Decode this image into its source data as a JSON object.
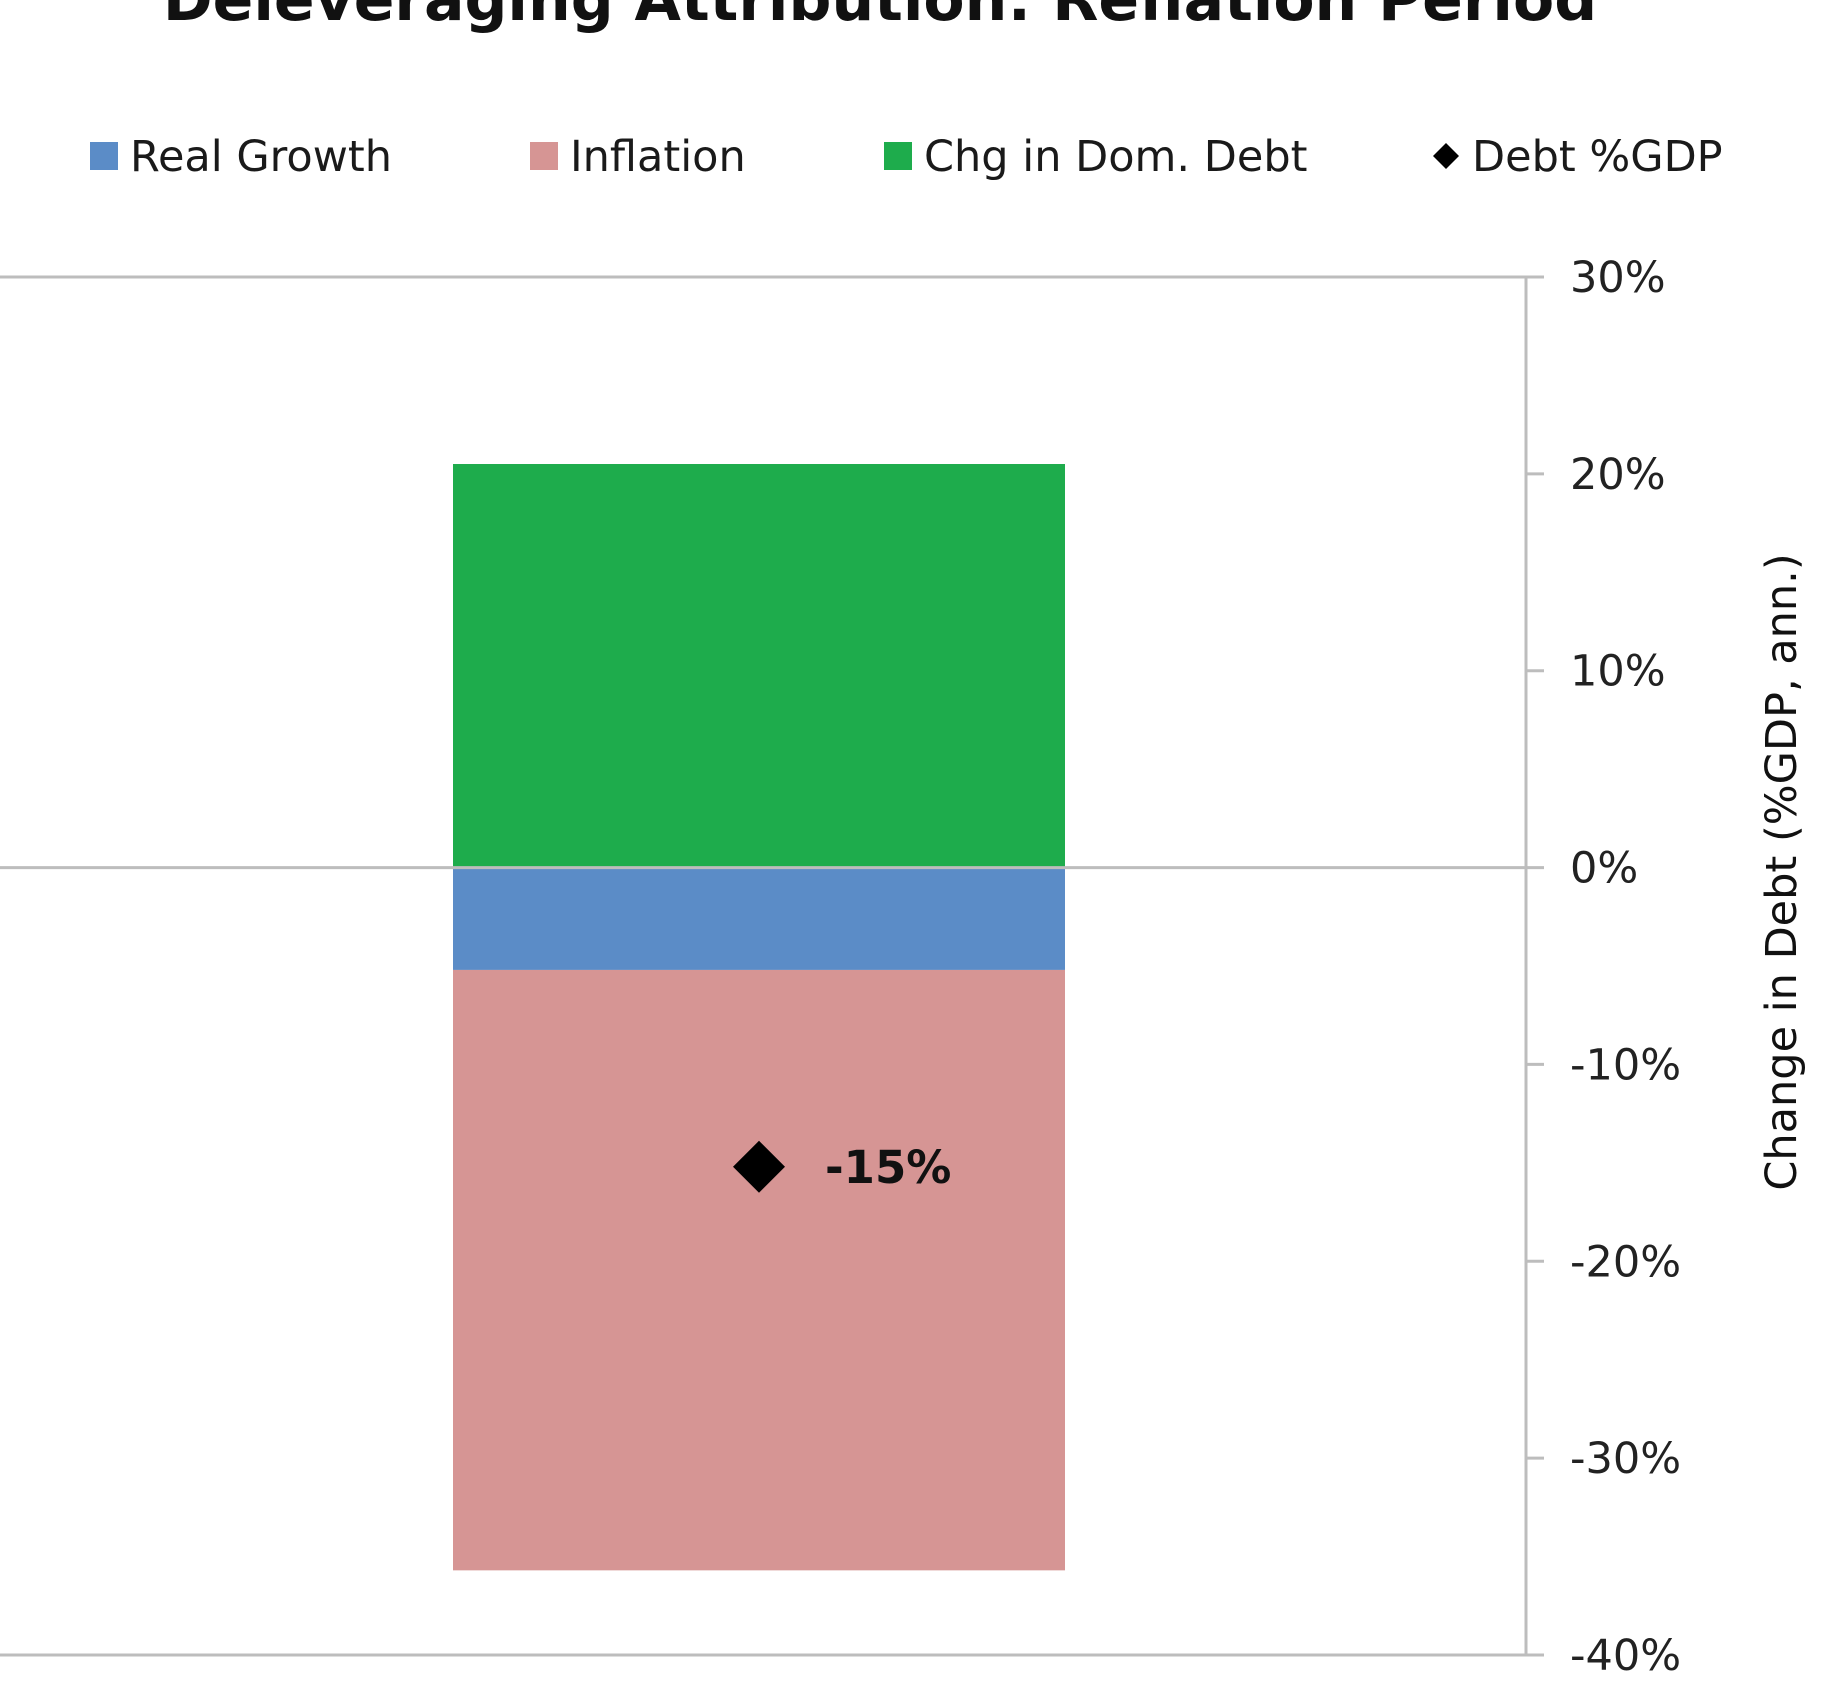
{
  "chart_data": {
    "type": "bar",
    "stacked": true,
    "title": "Deleveraging Attribution: Reflation Period",
    "ylabel": "Change in Debt (%GDP, ann.)",
    "xlabel": "",
    "ylim": [
      -40,
      30
    ],
    "yticks": [
      30,
      20,
      10,
      0,
      -10,
      -20,
      -30,
      -40
    ],
    "ytick_labels": [
      "30%",
      "20%",
      "10%",
      "0%",
      "-10%",
      "-20%",
      "-30%",
      "-40%"
    ],
    "y_axis_side": "right",
    "grid": false,
    "legend_position": "top",
    "categories": [
      ""
    ],
    "series": [
      {
        "name": "Real Growth",
        "values": [
          -5.2
        ],
        "color": "#5b8cc7"
      },
      {
        "name": "Inflation",
        "values": [
          -30.5
        ],
        "color": "#d69594"
      },
      {
        "name": "Chg in Dom. Debt",
        "values": [
          20.5
        ],
        "color": "#1eac4c"
      }
    ],
    "markers": [
      {
        "name": "Debt %GDP",
        "values": [
          -15.2
        ],
        "label": "-15%",
        "color": "#000000",
        "shape": "diamond"
      }
    ]
  }
}
